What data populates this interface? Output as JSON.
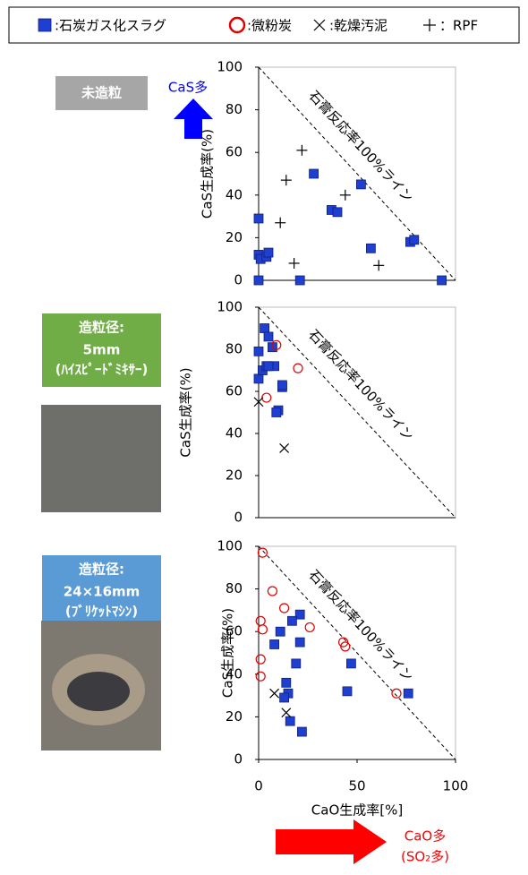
{
  "legend": [
    {
      "marker": "square",
      "color": "#1f3fd0",
      "label": ":石炭ガス化スラグ"
    },
    {
      "marker": "circle",
      "color": "#e00000",
      "label": ":微粉炭"
    },
    {
      "marker": "x",
      "color": "#000000",
      "label": ":乾燥汚泥"
    },
    {
      "marker": "plus",
      "color": "#000000",
      "label": "：RPF"
    }
  ],
  "panel_labels": [
    {
      "lines": [
        "未造粒"
      ],
      "color": "#a6a6a6"
    },
    {
      "lines": [
        "造粒径:",
        "5mm",
        "(ﾊｲｽﾋﾟｰﾄﾞﾐｷｻｰ)"
      ],
      "color": "#70ad47"
    },
    {
      "lines": [
        "造粒径:",
        "24×16mm",
        "(ﾌﾞﾘｹｯﾄﾏｼﾝ)"
      ],
      "color": "#5b9bd5"
    }
  ],
  "arrows": {
    "up": {
      "label": "CaS多",
      "color": "#0000ff"
    },
    "right": {
      "lines": [
        "CaO多",
        "(SO₂多)"
      ],
      "color": "#ff0000"
    }
  },
  "chart_data": [
    {
      "type": "scatter",
      "ylabel": "CaS生成率(%)",
      "line_label": "石膏反応率100%ライン",
      "xlim": [
        0,
        100
      ],
      "ylim": [
        0,
        100
      ],
      "yticks": [
        0,
        20,
        40,
        60,
        80,
        100
      ],
      "series": [
        {
          "marker": "square",
          "color": "#1f3fd0",
          "x": [
            0,
            0,
            1,
            4,
            5,
            0,
            28,
            21,
            37,
            40,
            52,
            57,
            77,
            79,
            93
          ],
          "values": [
            29,
            12,
            10,
            11,
            13,
            0,
            50,
            0,
            33,
            32,
            45,
            15,
            18,
            19,
            0
          ]
        },
        {
          "marker": "plus",
          "color": "#000000",
          "x": [
            22,
            14,
            11,
            18,
            44,
            61
          ],
          "values": [
            61,
            47,
            27,
            8,
            40,
            7
          ]
        }
      ]
    },
    {
      "type": "scatter",
      "ylabel": "CaS生成率(%)",
      "line_label": "石膏反応率100%ライン",
      "xlim": [
        0,
        100
      ],
      "ylim": [
        0,
        100
      ],
      "yticks": [
        0,
        20,
        40,
        60,
        80,
        100
      ],
      "series": [
        {
          "marker": "square",
          "color": "#1f3fd0",
          "x": [
            0,
            0,
            3,
            5,
            7,
            2,
            4,
            8,
            5,
            10,
            12,
            12,
            9
          ],
          "values": [
            66,
            79,
            90,
            86,
            81,
            70,
            72,
            72,
            72,
            51,
            62,
            63,
            50
          ]
        },
        {
          "marker": "circle",
          "color": "#e00000",
          "x": [
            9,
            4,
            20
          ],
          "values": [
            82,
            57,
            71
          ]
        },
        {
          "marker": "x",
          "color": "#000000",
          "x": [
            0,
            13
          ],
          "values": [
            55,
            33
          ]
        }
      ]
    },
    {
      "type": "scatter",
      "ylabel": "CaS生成率(%)",
      "xlabel": "CaO生成率[%]",
      "line_label": "石膏反応率100%ライン",
      "xlim": [
        0,
        100
      ],
      "ylim": [
        0,
        100
      ],
      "xticks": [
        0,
        50,
        100
      ],
      "yticks": [
        0,
        20,
        40,
        60,
        80,
        100
      ],
      "series": [
        {
          "marker": "square",
          "color": "#1f3fd0",
          "x": [
            21,
            17,
            11,
            8,
            21,
            19,
            14,
            15,
            13,
            16,
            22,
            45,
            47,
            76
          ],
          "values": [
            68,
            65,
            60,
            54,
            55,
            45,
            36,
            31,
            29,
            18,
            13,
            32,
            45,
            31
          ]
        },
        {
          "marker": "circle",
          "color": "#e00000",
          "x": [
            2,
            7,
            1,
            2,
            1,
            1,
            13,
            26,
            43,
            44,
            70
          ],
          "values": [
            97,
            79,
            65,
            61,
            47,
            39,
            71,
            62,
            55,
            53,
            31
          ]
        },
        {
          "marker": "x",
          "color": "#000000",
          "x": [
            8,
            14
          ],
          "values": [
            31,
            22
          ]
        }
      ]
    }
  ]
}
